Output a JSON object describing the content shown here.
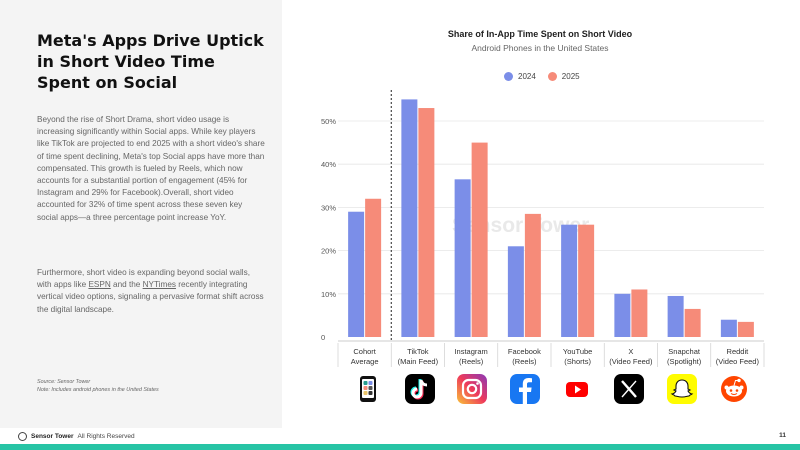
{
  "left": {
    "headline_lines": [
      "Meta's Apps Drive Uptick",
      "in Short Video Time",
      "Spent on Social"
    ],
    "paragraph1": "Beyond the rise of Short Drama, short video usage is increasing significantly within Social apps. While key players like TikTok are projected to end 2025 with a short video's share of time spent declining, Meta's top Social apps have more than compensated. This growth is fueled by Reels, which now accounts for a substantial portion of engagement (45% for Instagram and 29% for Facebook).Overall, short video accounted for 32% of time spent across these seven key social apps—a three percentage point increase YoY.",
    "paragraph2_before": "Furthermore, short video is expanding beyond social walls, with apps like ",
    "link_espn": "ESPN",
    "paragraph2_mid": " and the ",
    "link_nytimes": "NYTimes",
    "paragraph2_after": " recently integrating vertical video options, signaling a pervasive format shift across the digital landscape.",
    "source_line1": "Source: Sensor Tower",
    "source_line2": "Note: Includes android phones in the United States"
  },
  "colors": {
    "series_2024": "#7b8ee8",
    "series_2025": "#f68b79",
    "accent": "#27c4a5"
  },
  "chart_data": {
    "type": "bar",
    "title": "Share of In-App Time Spent on Short Video",
    "subtitle": "Android Phones in the United States",
    "categories": [
      [
        "Cohort",
        "Average"
      ],
      [
        "TikTok",
        "(Main Feed)"
      ],
      [
        "Instagram",
        "(Reels)"
      ],
      [
        "Facebook",
        "(Reels)"
      ],
      [
        "YouTube",
        "(Shorts)"
      ],
      [
        "X",
        "(Video Feed)"
      ],
      [
        "Snapchat",
        "(Spotlight)"
      ],
      [
        "Reddit",
        "(Video Feed)"
      ]
    ],
    "series": [
      {
        "name": "2024",
        "color": "#7b8ee8",
        "values": [
          29,
          55,
          36.5,
          21,
          26,
          10,
          9.5,
          4
        ]
      },
      {
        "name": "2025",
        "color": "#f68b79",
        "values": [
          32,
          53,
          45,
          28.5,
          26,
          11,
          6.5,
          3.5
        ]
      }
    ],
    "ylim": [
      0,
      55
    ],
    "y_ticks": [
      0,
      10,
      20,
      30,
      40,
      50
    ],
    "y_tick_labels": [
      "0",
      "10%",
      "20%",
      "30%",
      "40%",
      "50%"
    ],
    "grid": true,
    "legend": "top-center",
    "divider_after": "Cohort Average"
  },
  "icons": [
    {
      "name": "cohort-average-icon"
    },
    {
      "name": "tiktok-icon"
    },
    {
      "name": "instagram-icon"
    },
    {
      "name": "facebook-icon"
    },
    {
      "name": "youtube-icon"
    },
    {
      "name": "x-icon"
    },
    {
      "name": "snapchat-icon"
    },
    {
      "name": "reddit-icon"
    }
  ],
  "watermark": "Sensor Tower",
  "footer": {
    "brand": "Sensor Tower",
    "rights": "All Rights Reserved",
    "page": "11"
  }
}
